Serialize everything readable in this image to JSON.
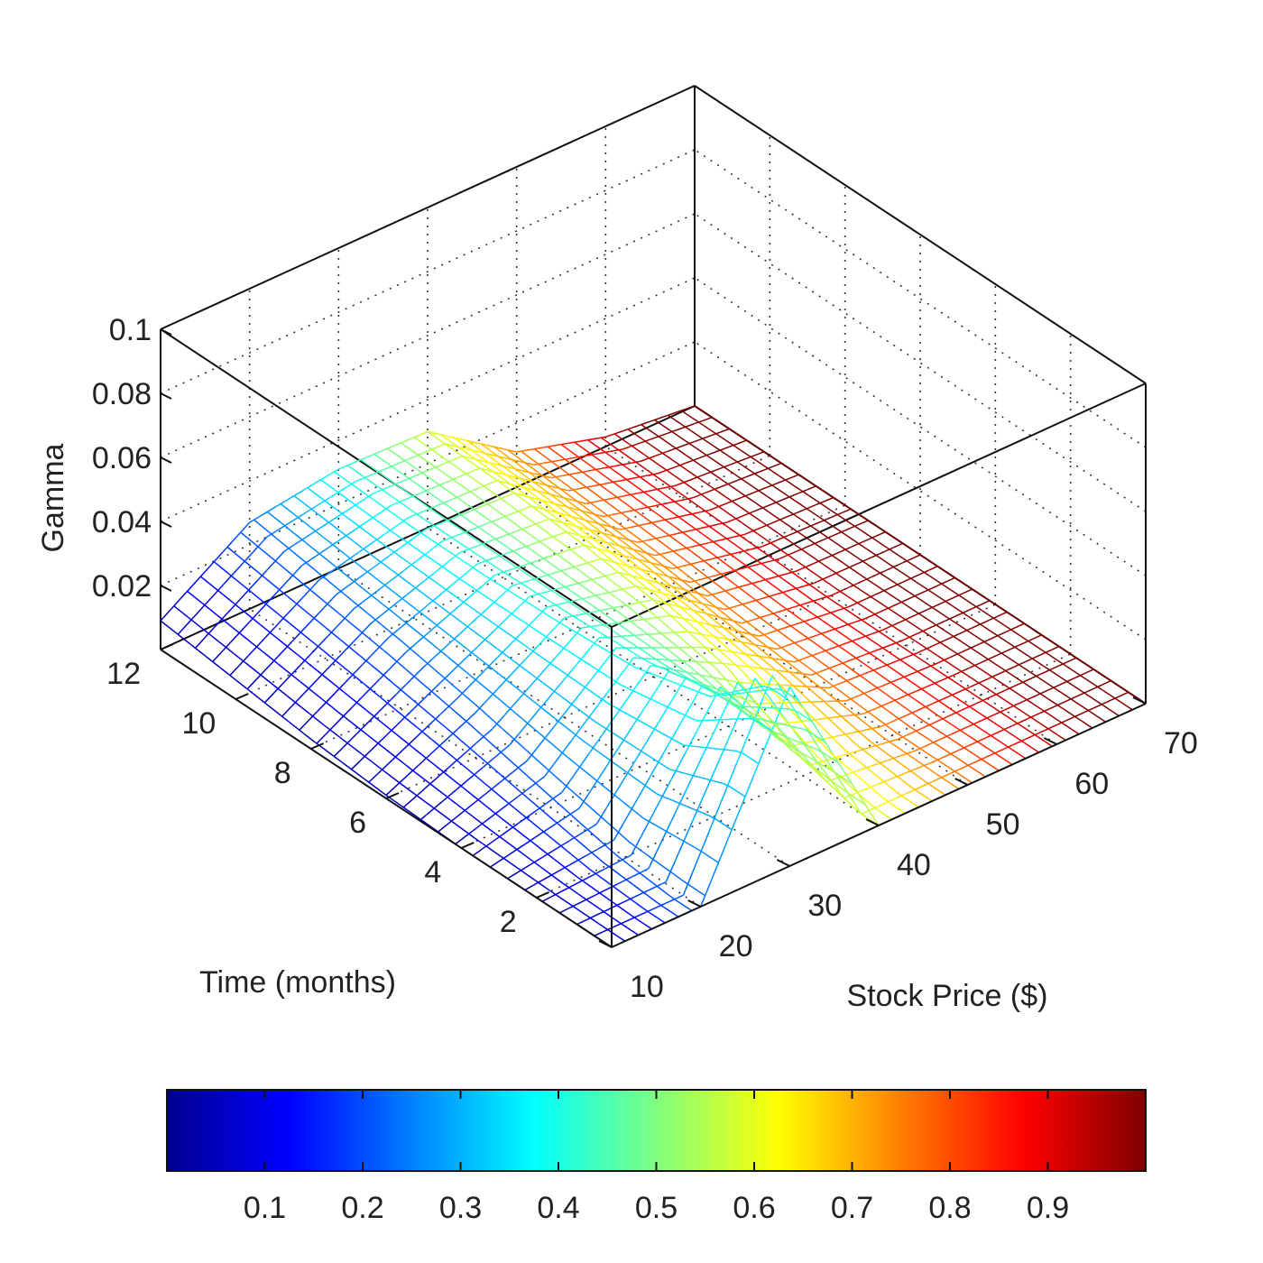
{
  "chart_data": {
    "type": "surface",
    "x_axis": {
      "label": "Stock Price ($)",
      "range": [
        10,
        70
      ],
      "ticks": [
        "10",
        "20",
        "30",
        "40",
        "50",
        "60",
        "70"
      ]
    },
    "y_axis": {
      "label": "Time (months)",
      "range": [
        0,
        12
      ],
      "ticks": [
        "2",
        "4",
        "6",
        "8",
        "10",
        "12"
      ]
    },
    "z_axis": {
      "label": "Gamma",
      "range": [
        0,
        0.1
      ],
      "ticks": [
        "0.02",
        "0.04",
        "0.06",
        "0.08",
        "0.1"
      ]
    },
    "colorbar": {
      "colormap": "jet",
      "range": [
        0,
        1
      ],
      "ticks": [
        "0.1",
        "0.2",
        "0.3",
        "0.4",
        "0.5",
        "0.6",
        "0.7",
        "0.8",
        "0.9"
      ]
    },
    "surface": {
      "x_values": [
        10,
        20,
        30,
        40,
        50,
        60,
        70
      ],
      "y_values": [
        0.5,
        2,
        4,
        6,
        8,
        10,
        12
      ],
      "z_values": [
        [
          0.0,
          0.0,
          0.056,
          0.0,
          0.0,
          0.0,
          0.0
        ],
        [
          0.0,
          0.002,
          0.04,
          0.005,
          0.0,
          0.0,
          0.0
        ],
        [
          0.0,
          0.008,
          0.033,
          0.018,
          0.002,
          0.0,
          0.0
        ],
        [
          0.001,
          0.014,
          0.031,
          0.024,
          0.004,
          0.0,
          0.0
        ],
        [
          0.003,
          0.019,
          0.03,
          0.027,
          0.007,
          0.001,
          0.0
        ],
        [
          0.006,
          0.023,
          0.03,
          0.029,
          0.009,
          0.002,
          0.0
        ],
        [
          0.009,
          0.027,
          0.031,
          0.03,
          0.011,
          0.003,
          0.0
        ]
      ]
    },
    "grid": true,
    "colors": {
      "frame": "#111111",
      "grid": "#333333"
    }
  }
}
